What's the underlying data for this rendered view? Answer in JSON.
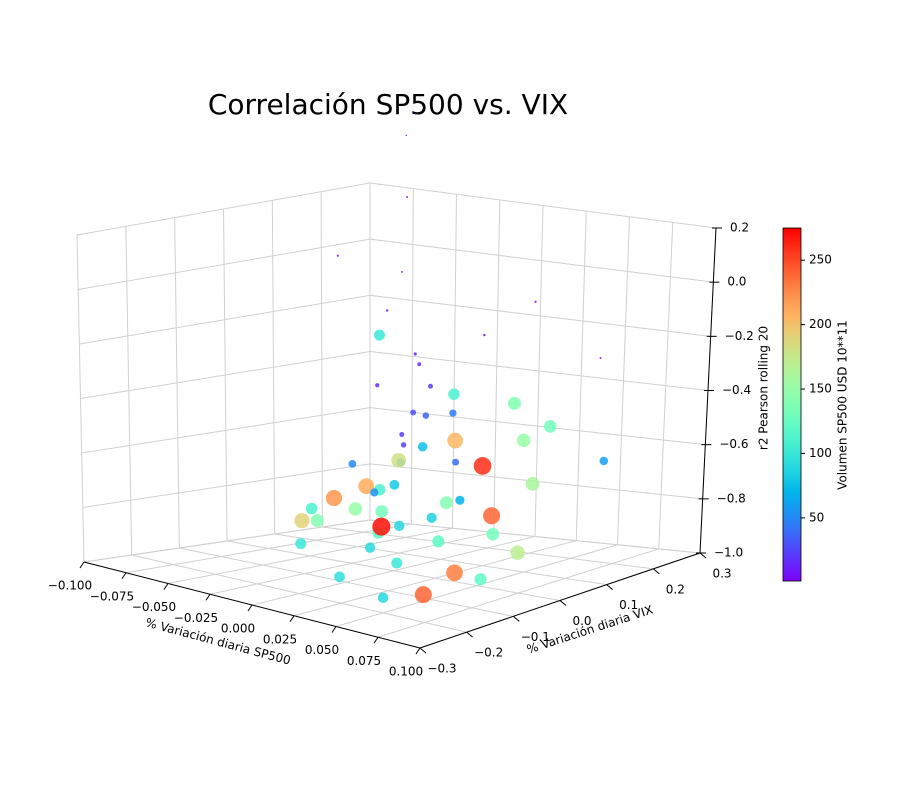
{
  "chart_data": {
    "type": "scatter3d",
    "title": "Correlación SP500 vs. VIX",
    "x_label": "% Variación diaria SP500",
    "y_label": "% Variación diaria VIX",
    "z_label": "r2 Pearson rolling 20",
    "colorbar_label": "Volumen SP500 USD 10**11",
    "colormap": "rainbow",
    "grid": true,
    "xlim": [
      -0.1,
      0.1
    ],
    "xticks": [
      {
        "value": -0.1,
        "label": "−0.100"
      },
      {
        "value": -0.075,
        "label": "−0.075"
      },
      {
        "value": -0.05,
        "label": "−0.050"
      },
      {
        "value": -0.025,
        "label": "−0.025"
      },
      {
        "value": 0,
        "label": "0.000"
      },
      {
        "value": 0.025,
        "label": "0.025"
      },
      {
        "value": 0.05,
        "label": "0.050"
      },
      {
        "value": 0.075,
        "label": "0.075"
      },
      {
        "value": 0.1,
        "label": "0.100"
      }
    ],
    "ylim": [
      -0.3,
      0.3
    ],
    "yticks": [
      {
        "value": -0.3,
        "label": "−0.3"
      },
      {
        "value": -0.2,
        "label": "−0.2"
      },
      {
        "value": -0.1,
        "label": "−0.1"
      },
      {
        "value": 0,
        "label": "0.0"
      },
      0.1,
      0.2,
      0.3
    ],
    "zlim": [
      -1.0,
      0.2
    ],
    "zticks": [
      {
        "value": -1.0,
        "label": "−1.0"
      },
      {
        "value": -0.8,
        "label": "−0.8"
      },
      {
        "value": -0.6,
        "label": "−0.6"
      },
      {
        "value": -0.4,
        "label": "−0.4"
      },
      {
        "value": -0.2,
        "label": "−0.2"
      },
      {
        "value": 0,
        "label": "0.0"
      },
      0.2
    ],
    "clim": [
      1,
      275
    ],
    "cticks": [
      50,
      100,
      150,
      200,
      250
    ],
    "x": [
      0.005,
      -0.01,
      0.012,
      0.0,
      -0.02,
      0.02,
      0.008,
      -0.005,
      0.003,
      -0.008,
      0.006,
      0.0,
      -0.012,
      0.01,
      0.002,
      0.03,
      -0.03,
      0.045,
      -0.045,
      0.06,
      0.07,
      0.05,
      0.02,
      0.03,
      0.0,
      -0.015,
      0.01,
      0.015,
      0.04,
      -0.06,
      -0.07,
      -0.05,
      0.025,
      -0.025,
      0.035,
      0.012,
      -0.018,
      0.04,
      0.008,
      -0.003,
      0.018,
      -0.02,
      0.025,
      0.05,
      0.0,
      -0.035,
      0.045,
      0.08,
      -0.08,
      0.01,
      -0.01,
      0.02,
      0.005,
      -0.006,
      0.028,
      0.06,
      -0.04,
      0.03,
      -0.055,
      0.015
    ],
    "y": [
      0.02,
      0.05,
      -0.03,
      0.0,
      0.04,
      -0.06,
      0.1,
      -0.02,
      0.03,
      0.01,
      -0.01,
      0.02,
      0.06,
      0.0,
      -0.04,
      -0.1,
      0.08,
      -0.05,
      0.1,
      -0.15,
      -0.12,
      -0.2,
      0.2,
      0.22,
      0.25,
      0.18,
      0.15,
      -0.08,
      0.15,
      0.05,
      0.12,
      -0.02,
      0.05,
      0.0,
      -0.03,
      0.08,
      0.03,
      0.3,
      -0.01,
      0.06,
      0.12,
      -0.05,
      0.2,
      0.25,
      -0.05,
      -0.05,
      0.05,
      -0.1,
      0.2,
      -0.15,
      0.1,
      0.05,
      -0.06,
      0.08,
      -0.02,
      0.05,
      0.15,
      0.1,
      0.0,
      0.02
    ],
    "z": [
      -0.45,
      -0.55,
      -0.6,
      -0.7,
      -0.75,
      -0.8,
      -0.65,
      -0.35,
      -0.25,
      -0.1,
      0.05,
      0.3,
      0.5,
      0.6,
      -0.85,
      -0.9,
      -0.85,
      -0.7,
      -0.78,
      -0.95,
      -0.88,
      -0.95,
      -0.6,
      -0.55,
      -0.5,
      -0.62,
      -0.68,
      -0.8,
      -0.72,
      -0.9,
      -0.85,
      -0.95,
      -0.75,
      -0.65,
      -0.85,
      -0.4,
      -0.2,
      -0.7,
      -0.55,
      -0.3,
      -0.2,
      0.1,
      -0.1,
      -0.3,
      -0.9,
      -0.8,
      -0.85,
      -0.9,
      -0.92,
      -0.95,
      -0.5,
      -0.45,
      -0.7,
      -0.6,
      -0.78,
      -0.9,
      -0.7,
      -0.82,
      -0.88,
      -0.35
    ],
    "volume": [
      30,
      20,
      60,
      80,
      110,
      90,
      40,
      15,
      8,
      5,
      3,
      3,
      2,
      2,
      120,
      100,
      130,
      140,
      210,
      240,
      230,
      90,
      150,
      130,
      140,
      205,
      260,
      270,
      160,
      140,
      220,
      100,
      70,
      50,
      120,
      110,
      100,
      60,
      25,
      12,
      5,
      4,
      4,
      3,
      90,
      110,
      130,
      120,
      150,
      95,
      35,
      45,
      55,
      75,
      85,
      170,
      180,
      240,
      190,
      20
    ]
  }
}
